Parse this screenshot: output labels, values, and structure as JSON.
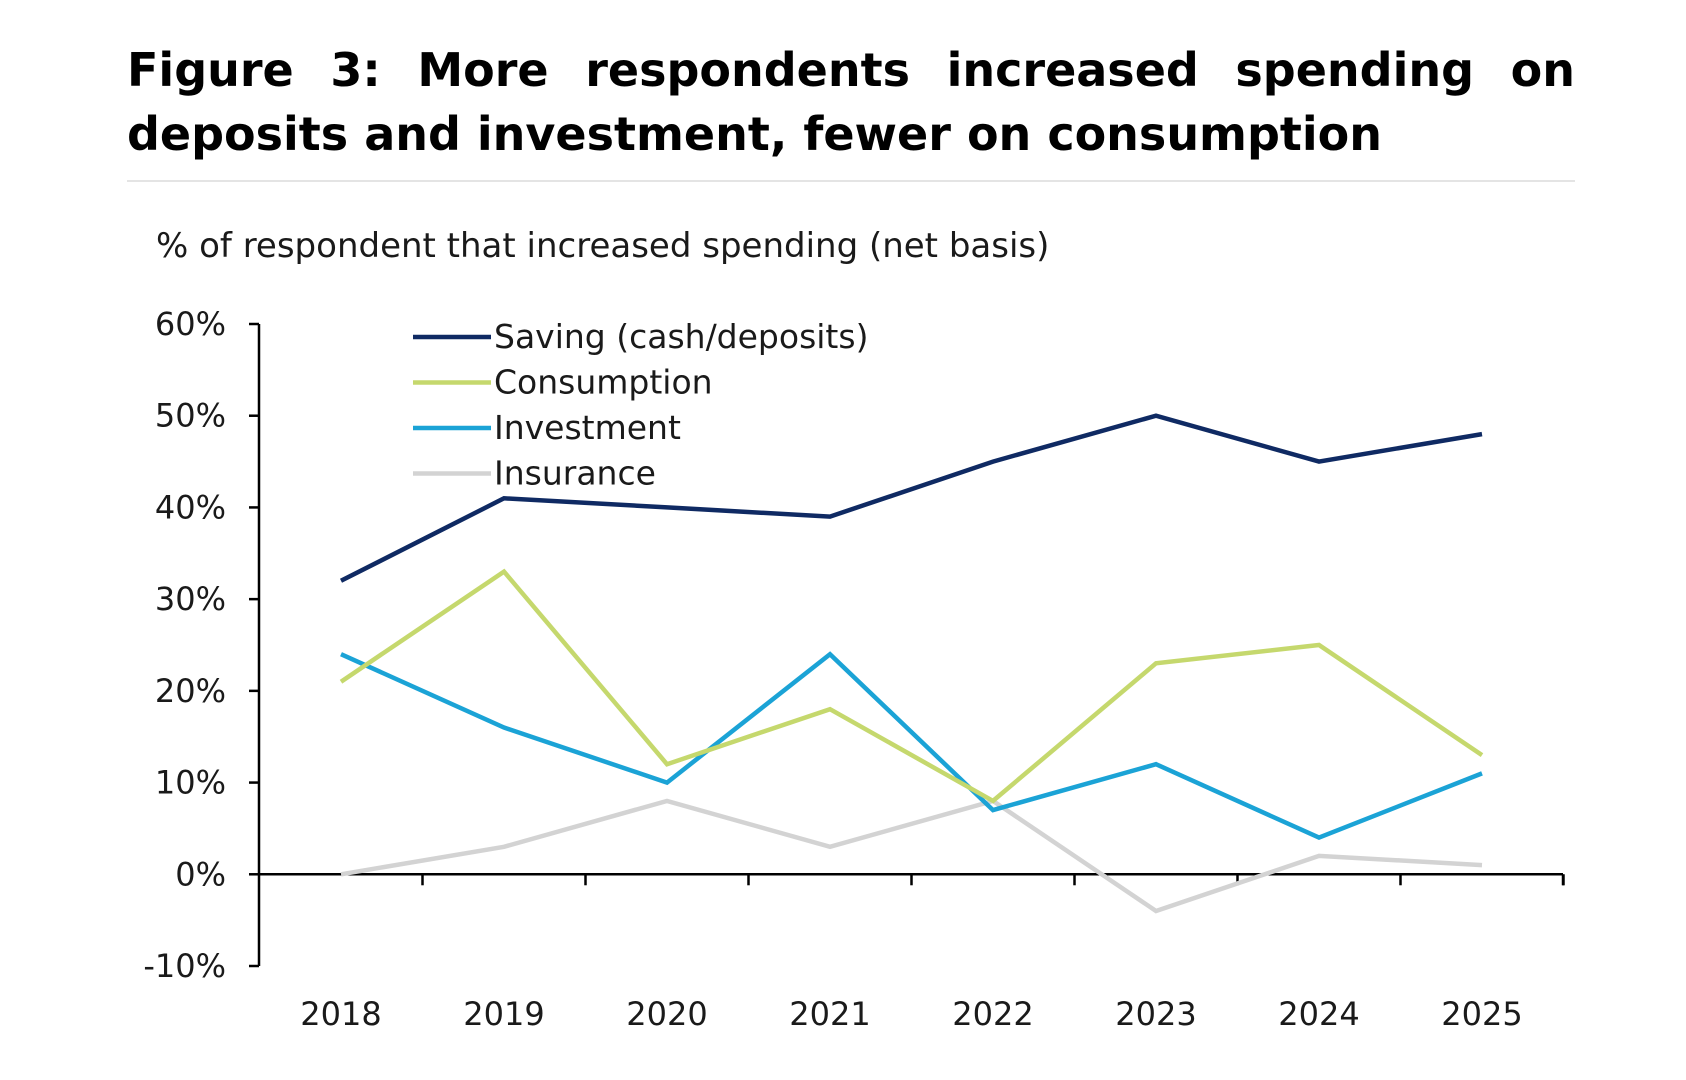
{
  "figure": {
    "title": "Figure 3: More respondents increased spending on deposits and investment, fewer on consumption"
  },
  "chart_data": {
    "type": "line",
    "title": "Figure 3: More respondents increased spending on deposits and investment, fewer on consumption",
    "subtitle": "% of respondent that increased spending (net basis)",
    "xlabel": "",
    "ylabel": "% of respondent that increased spending (net basis)",
    "categories": [
      "2018",
      "2019",
      "2020",
      "2021",
      "2022",
      "2023",
      "2024",
      "2025"
    ],
    "y_ticks": [
      60,
      50,
      40,
      30,
      20,
      10,
      0,
      -10
    ],
    "y_tick_labels": [
      "60%",
      "50%",
      "40%",
      "30%",
      "20%",
      "10%",
      "0%",
      "-10%"
    ],
    "ylim": [
      -10,
      60
    ],
    "grid": false,
    "legend_position": "top-left",
    "series": [
      {
        "name": "Saving (cash/deposits)",
        "color": "#0f2a63",
        "values": [
          32,
          41,
          40,
          39,
          45,
          50,
          45,
          48
        ]
      },
      {
        "name": "Consumption",
        "color": "#c5d86d",
        "values": [
          21,
          33,
          12,
          18,
          8,
          23,
          25,
          13
        ]
      },
      {
        "name": "Investment",
        "color": "#1ba3d6",
        "values": [
          24,
          16,
          10,
          24,
          7,
          12,
          4,
          11
        ]
      },
      {
        "name": "Insurance",
        "color": "#d3d3d3",
        "values": [
          0,
          3,
          8,
          3,
          8,
          -4,
          2,
          1
        ]
      }
    ]
  }
}
